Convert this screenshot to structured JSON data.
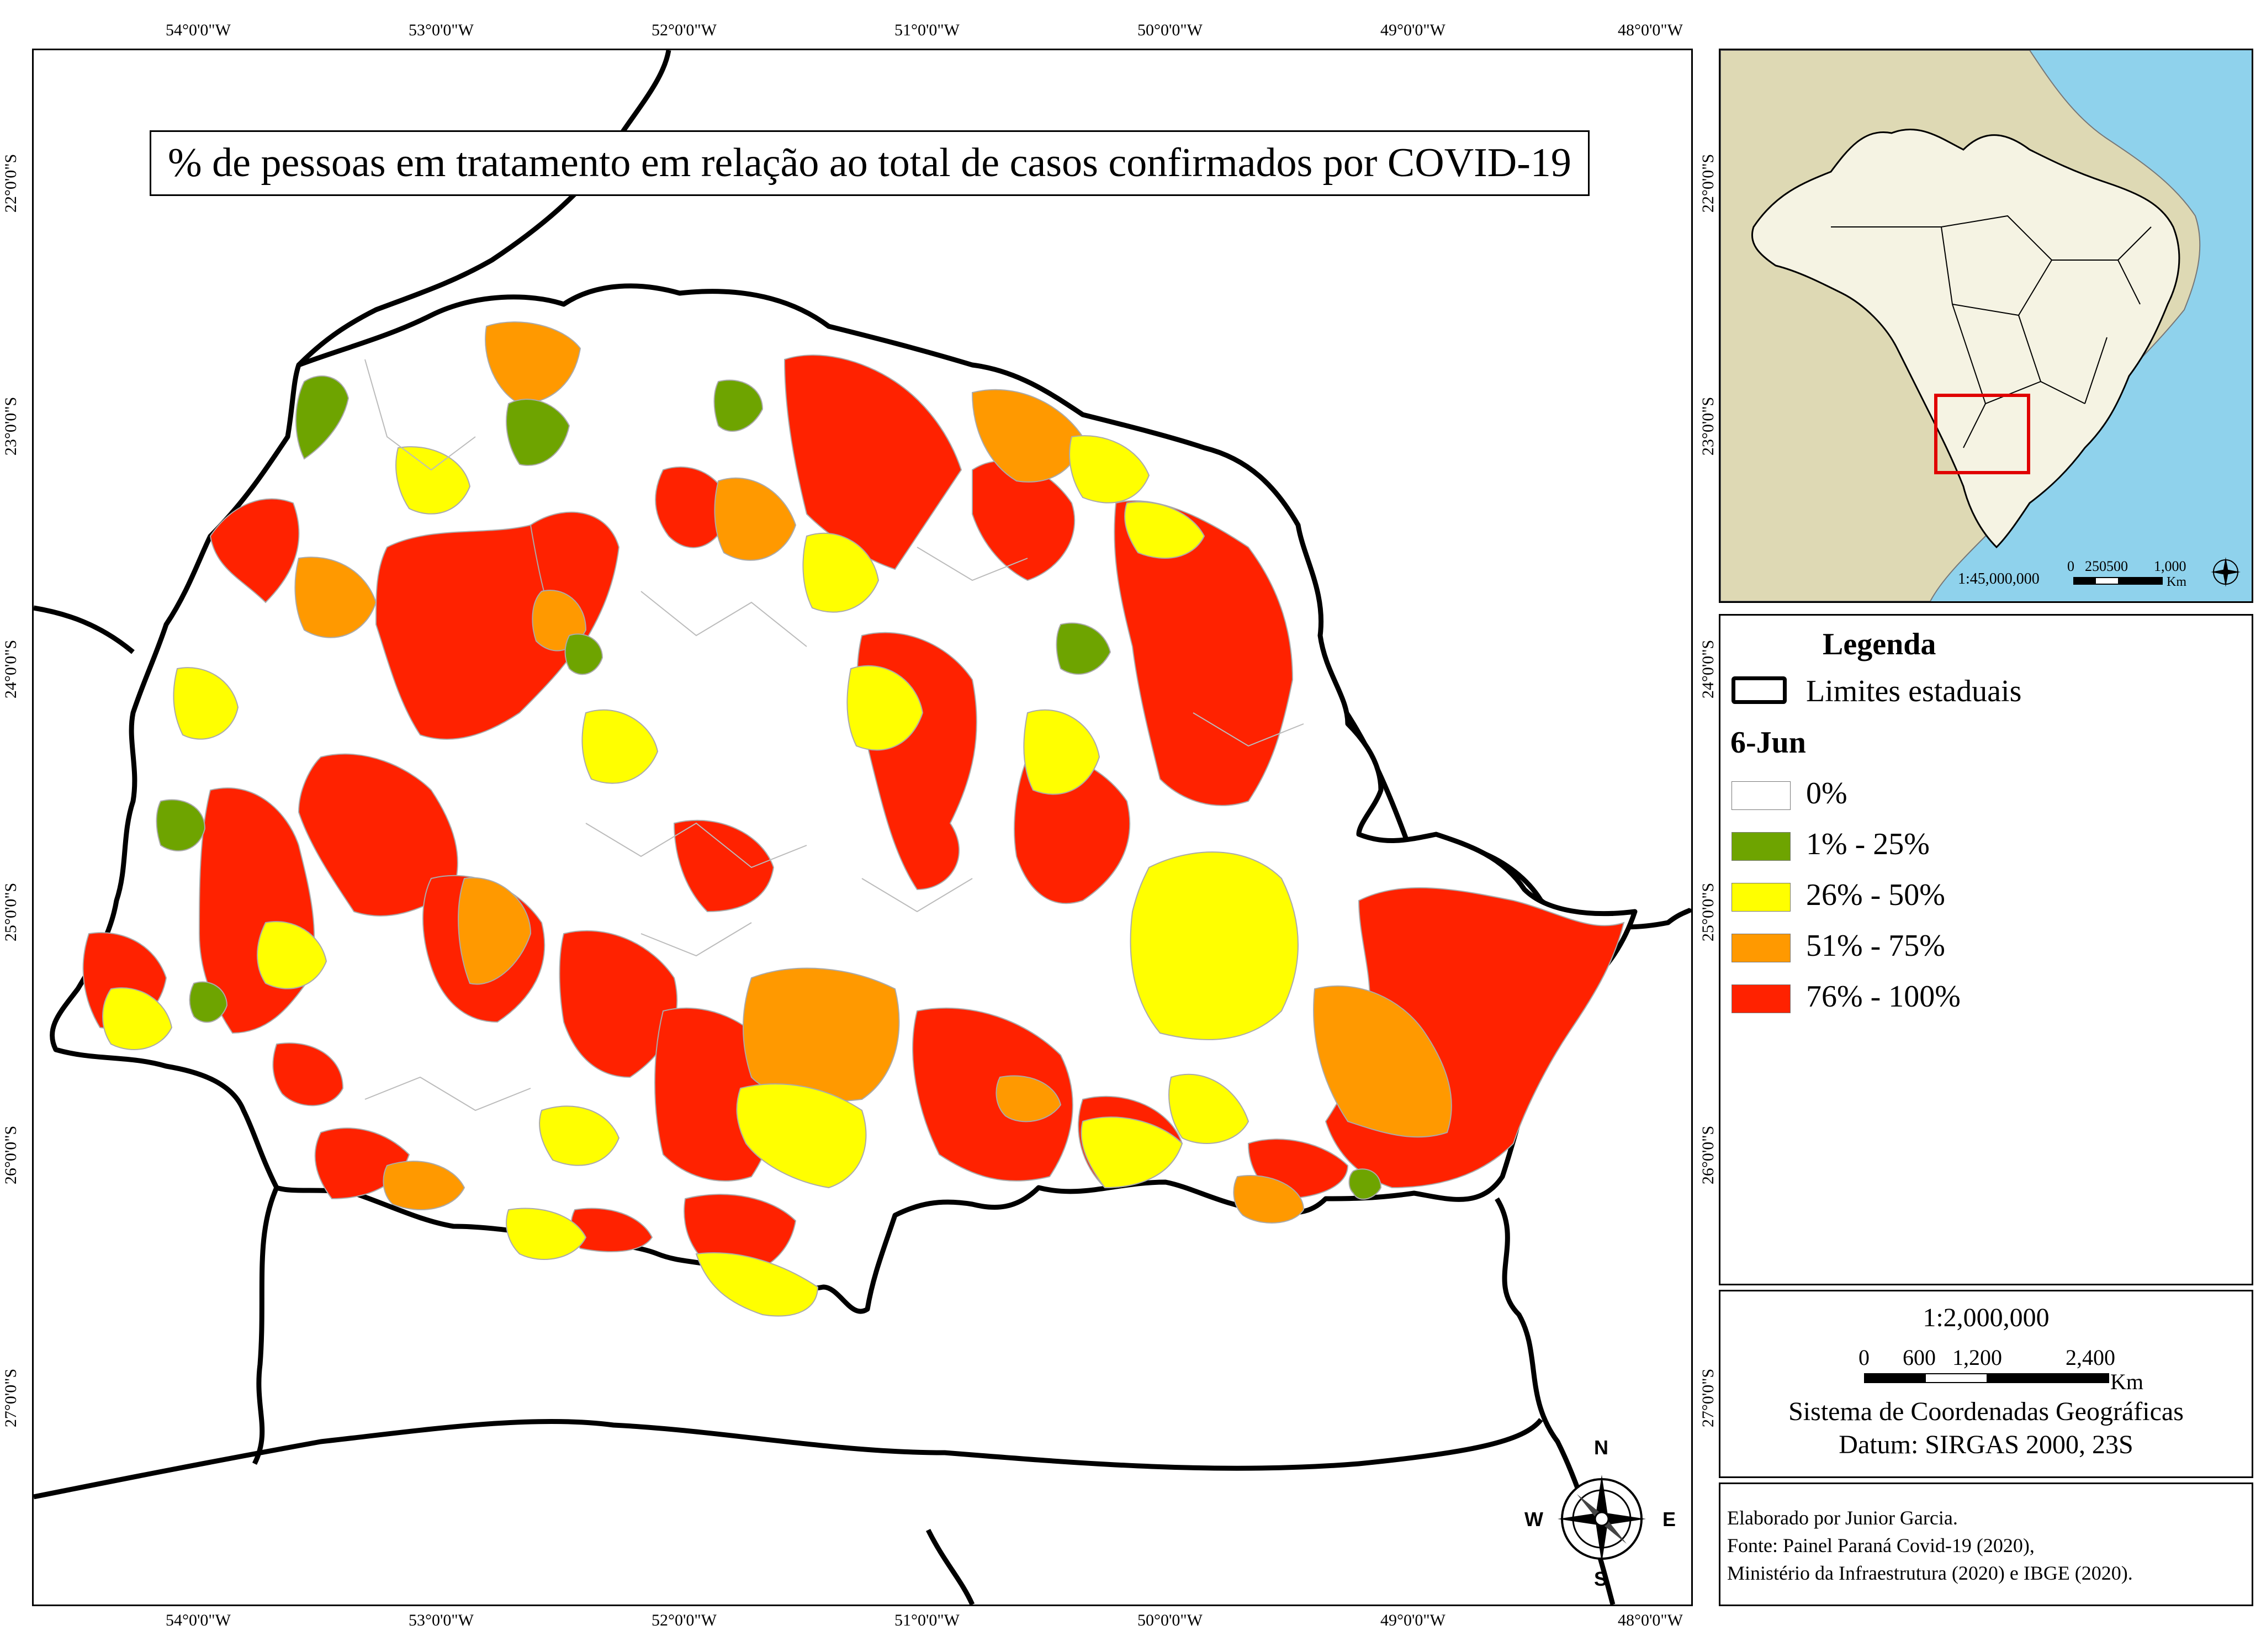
{
  "title": "% de pessoas em tratamento em relação ao total de casos confirmados por COVID-19",
  "graticule": {
    "longitudes": [
      "54°0'0\"W",
      "53°0'0\"W",
      "52°0'0\"W",
      "51°0'0\"W",
      "50°0'0\"W",
      "49°0'0\"W",
      "48°0'0\"W"
    ],
    "latitudes": [
      "22°0'0\"S",
      "23°0'0\"S",
      "24°0'0\"S",
      "25°0'0\"S",
      "26°0'0\"S",
      "27°0'0\"S"
    ]
  },
  "legend": {
    "title": "Legenda",
    "state_limits": "Limites estaduais",
    "date": "6-Jun",
    "classes": [
      {
        "label": "0%",
        "color": "#ffffff"
      },
      {
        "label": "1% - 25%",
        "color": "#6ea400"
      },
      {
        "label": "26% - 50%",
        "color": "#ffff00"
      },
      {
        "label": "51% - 75%",
        "color": "#ff9900"
      },
      {
        "label": "76% - 100%",
        "color": "#ff2200"
      }
    ]
  },
  "inset": {
    "scale_text": "1:45,000,000",
    "scale_ticks": [
      "0",
      "250500",
      "1,000"
    ],
    "unit": "Km"
  },
  "scale": {
    "ratio": "1:2,000,000",
    "ticks": [
      "0",
      "600",
      "1,200",
      "2,400"
    ],
    "unit": "Km",
    "crs": "Sistema de Coordenadas Geográficas",
    "datum": "Datum: SIRGAS 2000, 23S"
  },
  "compass": {
    "n": "N",
    "s": "S",
    "e": "E",
    "w": "W"
  },
  "credits": [
    "Elaborado por Junior Garcia.",
    "Fonte: Painel Paraná Covid-19 (2020),",
    "Ministério da Infraestrutura (2020) e IBGE (2020)."
  ],
  "colors": {
    "ocean": "#8fd2ec",
    "land": "#ded9b4",
    "brazil": "#f5f3e3",
    "highlight": "#e00000"
  }
}
